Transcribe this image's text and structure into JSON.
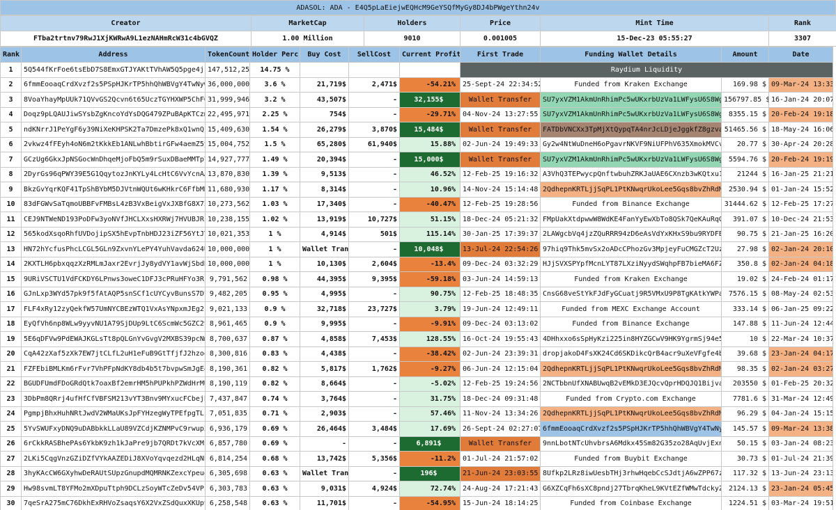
{
  "title": "ADASOL: ADA - E4Q5pLaEiejwEQHcM9GeYSQfMyGy8DJ4bPWgeYthn24v",
  "summary": {
    "headers": [
      "Creator",
      "MarketCap",
      "Holders",
      "Price",
      "Mint Time",
      "Rank"
    ],
    "values": [
      "FTba2trtnv79RwJ1XjKWRwA9L1ezNAHmRcW31c4bGVQZ",
      "1.00 Million",
      "9010",
      "0.001005",
      "15-Dec-23 05:55:27",
      "3307"
    ]
  },
  "table": {
    "headers": [
      "Rank",
      "Address",
      "TokenCount",
      "Holder Perc",
      "Buy Cost",
      "SellCost",
      "Current Profit",
      "First Trade",
      "Funding Wallet Details",
      "Amount",
      "Date"
    ],
    "rows": [
      {
        "cells": [
          "1",
          "5Q544fKrFoe6tsEbD7S8EmxGTJYAKtTVhAW5Q5pge4j1",
          "147,512,256",
          "14.75 %",
          null,
          null,
          null,
          "Raydium Liquidity"
        ],
        "fills": {
          "7": "#5b6262"
        }
      },
      {
        "cells": [
          "2",
          "6fmmEooaqCrdXvzf2s5PSpHJKrTP5hhQhWBVgY4TwNyw",
          "36,000,000",
          "3.6 %",
          "21,719$",
          "2,471$",
          "-54.21%",
          "25-Sept-24 22:34:52",
          "Funded from Kraken Exchange",
          "169.98 $",
          "09-Mar-24 13:33"
        ],
        "fills": {
          "6": "#e8823c",
          "10": "#f4b183"
        }
      },
      {
        "cells": [
          "3",
          "8VoaYhayMpUUk71QVvGS2Qcvn6t65UczTGYHXWP5ChFQ",
          "31,999,946",
          "3.2 %",
          "43,507$",
          "-",
          "32,155$",
          "Wallet Transfer",
          "SU7yxVZM1AkmUnRhimPc5wUKxrbUzVa1LWFysU6S8Wg",
          "156797.85 $",
          "16-Jan-24 20:07"
        ],
        "fills": {
          "6": "#1e6b32",
          "7": "#e07b39",
          "8": "#92d6b4"
        }
      },
      {
        "cells": [
          "4",
          "Doqz9pLQAUJiwSYsbZgKncoYdYsDQG479ZPuBApKTCzm",
          "22,495,971",
          "2.25 %",
          "754$",
          "-",
          "-29.71%",
          "04-Nov-24 13:27:55",
          "SU7yxVZM1AkmUnRhimPc5wUKxrbUzVa1LWFysU6S8Wg",
          "8355.15 $",
          "20-Feb-24 19:18"
        ],
        "fills": {
          "6": "#e8823c",
          "8": "#92d6b4",
          "10": "#f4b183"
        }
      },
      {
        "cells": [
          "5",
          "ndKNrrJ1PeYgF6y39NiXeKHPSK2Ta7DmzePk8xQ1wnQ",
          "15,409,630",
          "1.54 %",
          "26,279$",
          "3,870$",
          "15,484$",
          "Wallet Transfer",
          "FATDbVNCXx3TpMjXtQypqTA4nrJcLDjeJggkfZ8gzvaZ",
          "51465.56 $",
          "18-May-24 16:06"
        ],
        "fills": {
          "6": "#1e6b32",
          "7": "#e07b39",
          "8": "#a68472"
        }
      },
      {
        "cells": [
          "6",
          "2vkwz4fFEyh4oN6m2tKkkEb1ANLwhBbtirGFw4aemZ5y",
          "15,004,752",
          "1.5 %",
          "65,280$",
          "61,940$",
          "15.88%",
          "02-Jun-24 19:49:33",
          "Gy2w4NtWuDneH6oPgavrNKVF9NiUFPhV635XmokMVCvU",
          "20.77 $",
          "30-Apr-24 20:28"
        ],
        "fills": {
          "6": "#d9f2e0"
        }
      },
      {
        "cells": [
          "7",
          "GCzUg6GkxJpNSGocWnDhqeMjoFbQ5m9rSuxDBaeMMTp7",
          "14,927,777",
          "1.49 %",
          "20,394$",
          "-",
          "15,000$",
          "Wallet Transfer",
          "SU7yxVZM1AkmUnRhimPc5wUKxrbUzVa1LWFysU6S8Wg",
          "5594.76 $",
          "20-Feb-24 19:19"
        ],
        "fills": {
          "6": "#1e6b32",
          "7": "#e07b39",
          "8": "#92d6b4",
          "10": "#f4b183"
        }
      },
      {
        "cells": [
          "8",
          "2DyrGs96qPWY39E5G1QqytozJnKYLy4LcHtC6VvYcnAA",
          "13,870,830",
          "1.39 %",
          "9,513$",
          "-",
          "46.52%",
          "12-Feb-25 19:16:32",
          "A3VhQ3TEPwycpQnftwbuhZRKJaUAE6CXnzb3wKQtxu14",
          "21244 $",
          "16-Jan-25 21:21"
        ],
        "fills": {
          "6": "#d9f2e0"
        }
      },
      {
        "cells": [
          "9",
          "BkzGvYqrKQF41TpShBYbM5DJVtnWQUt6wKHkrC6FfbMH",
          "11,680,930",
          "1.17 %",
          "8,314$",
          "-",
          "10.96%",
          "14-Nov-24 15:14:48",
          "2QdhepnKRTLjjSqPL1PtKNwqrUkoLee5Gqs8bvZhRdMv",
          "2530.94 $",
          "01-Jan-24 15:52"
        ],
        "fills": {
          "6": "#d9f2e0",
          "8": "#f4b183"
        }
      },
      {
        "cells": [
          "10",
          "83dFGWvSaTqmoUBBFvFMBsL4zB3VxBeigVxJXBfG8X72",
          "10,273,562",
          "1.03 %",
          "17,340$",
          "-",
          "-40.47%",
          "12-Feb-25 19:28:56",
          "Funded from Binance Exchange",
          "31444.62 $",
          "12-Feb-25 17:27"
        ],
        "fills": {
          "6": "#e8823c"
        }
      },
      {
        "cells": [
          "11",
          "CEJ9NTWeND193PoDFw3yoNVfJHCLXxsHXRWj7HVUBJRi",
          "10,238,155",
          "1.02 %",
          "13,919$",
          "10,727$",
          "51.15%",
          "18-Dec-24 05:21:32",
          "FMpUakXtdpwwW8WdKE4FanYyEwXbTo8QSk7QeKAuRqG1",
          "391.07 $",
          "10-Dec-24 21:53"
        ],
        "fills": {
          "6": "#d9f2e0"
        }
      },
      {
        "cells": [
          "12",
          "565kodXsqoRhfUVDojipSX5hEvpTnbHDJ23iZF56YtJY",
          "10,021,353",
          "1 %",
          "4,914$",
          "501$",
          "115.14%",
          "30-Jan-25 17:39:37",
          "2LAWgcbVq4jzZQuRRR94zD6eAsVdYxKHxS9bu9RYDFBh",
          "90.75 $",
          "21-Jan-25 16:20"
        ],
        "fills": {
          "6": "#d9f2e0"
        }
      },
      {
        "cells": [
          "13",
          "HN72hYcfusPhcLCGL5GLn9ZxvnYLePY4YuhVavda624U",
          "10,000,000",
          "1 %",
          "Wallet Transfer",
          "-",
          "10,048$",
          "13-Jul-24 22:54:26",
          "97hiq9Thk5mvSx2oADcCPhozGv3MpjeyFuCMGZcT2Uzh",
          "27.98 $",
          "02-Jan-24 20:10"
        ],
        "fills": {
          "6": "#1e6b32",
          "7": "#e07b39",
          "10": "#f4b183"
        }
      },
      {
        "cells": [
          "14",
          "2KXTLH6pbxqqzXzRMLmJaxr2EvrjJy8ydVY1avWjSbdB",
          "10,000,000",
          "1 %",
          "10,130$",
          "2,604$",
          "-13.4%",
          "09-Dec-24 03:32:29",
          "HJjSVXSPYpfMcnLYT87LXziNyydSWqhpFB7bieMA6FZS",
          "350.8 $",
          "02-Jan-24 04:18"
        ],
        "fills": {
          "6": "#e8823c",
          "10": "#f4b183"
        }
      },
      {
        "cells": [
          "15",
          "9URiVSCTU1VdFCKDY6LPnws3oweC1DFJ3cPRuHFYo3Rj",
          "9,791,562",
          "0.98 %",
          "44,395$",
          "9,395$",
          "-59.18%",
          "03-Jun-24 14:59:13",
          "Funded from Kraken Exchange",
          "19.02 $",
          "24-Feb-24 01:17"
        ],
        "fills": {
          "6": "#e8823c"
        }
      },
      {
        "cells": [
          "16",
          "GJnLxp3WYd57pk9f5fAtAQP5snSCf1cUYCyvBunsS7Dt",
          "9,482,205",
          "0.95 %",
          "4,995$",
          "-",
          "90.75%",
          "12-Feb-25 18:48:35",
          "CnsG68veStYkFJdFyGCuatj9R5VMxU9P8TgKAtkYWPaa",
          "7576.15 $",
          "08-May-24 02:53"
        ],
        "fills": {
          "6": "#d9f2e0"
        }
      },
      {
        "cells": [
          "17",
          "FLF4xRy12zyQekfW57UmNYCBEzWTQ1VxAsYNpxmJEg2k",
          "9,021,133",
          "0.9 %",
          "32,718$",
          "23,727$",
          "3.79%",
          "19-Jun-24 12:49:11",
          "Funded from MEXC Exchange Account",
          "333.14 $",
          "06-Jan-25 09:22"
        ],
        "fills": {
          "6": "#d9f2e0"
        }
      },
      {
        "cells": [
          "18",
          "EyQfVh6np8WLw9yyvNU1A79SjDUp9LtC6ScmWc5GZC2v",
          "8,961,465",
          "0.9 %",
          "9,995$",
          "-",
          "-9.91%",
          "09-Dec-24 03:13:02",
          "Funded from Binance Exchange",
          "147.88 $",
          "11-Jun-24 12:44"
        ],
        "fills": {
          "6": "#e8823c"
        }
      },
      {
        "cells": [
          "19",
          "5E6qDFVw9PdEWAJKGLsTt8pQLGnYvGvgV2MXBS39pcNm",
          "8,700,637",
          "0.87 %",
          "4,858$",
          "7,453$",
          "128.55%",
          "16-Oct-24 19:55:43",
          "4DHhxxo6sSpHyKzi225in8HYZGCwV9HK9YgrmSj94e5W",
          "10 $",
          "22-Mar-24 10:37"
        ],
        "fills": {
          "6": "#d9f2e0"
        }
      },
      {
        "cells": [
          "20",
          "CqA42zXaf5zXk7EW7jtCLfL2uH1eFuB9GtTfjfJ2hzoq",
          "8,300,816",
          "0.83 %",
          "4,438$",
          "-",
          "-38.42%",
          "02-Jun-24 23:39:31",
          "dropjakoD4FsXK24Cd6SKDikcQrB4acr9uXeVFgfe4b",
          "39.68 $",
          "23-Jan-24 04:17"
        ],
        "fills": {
          "6": "#e8823c",
          "10": "#f4b183"
        }
      },
      {
        "cells": [
          "21",
          "FZFEbiBMLKm6rFvr7VhPFpNdKY8db4b5t7bvpwSmJgE4",
          "8,190,361",
          "0.82 %",
          "5,817$",
          "1,762$",
          "-9.27%",
          "06-Jun-24 12:15:04",
          "2QdhepnKRTLjjSqPL1PtKNwqrUkoLee5Gqs8bvZhRdMv",
          "98.35 $",
          "02-Jan-24 03:27"
        ],
        "fills": {
          "6": "#e8823c",
          "8": "#f4b183",
          "10": "#f4b183"
        }
      },
      {
        "cells": [
          "22",
          "BGUDFUmdFDoGRdQtk7oaxBf2emrHM5hPUPkhPZWdHrMU",
          "8,190,119",
          "0.82 %",
          "8,664$",
          "-",
          "-5.02%",
          "12-Feb-25 19:24:56",
          "2NCTbbnUfXNABUwqB2vEMkD3EJQcvQprHDQJQ1Bijvaz",
          "203550 $",
          "01-Feb-25 20:32"
        ],
        "fills": {
          "6": "#d9f2e0"
        }
      },
      {
        "cells": [
          "23",
          "3DbPm8QRrj4ufHfCfVBFSM213vYT3Bnv9MYxucFCbejh",
          "7,437,847",
          "0.74 %",
          "3,764$",
          "-",
          "31.75%",
          "18-Dec-24 09:31:48",
          "Funded from Crypto.com Exchange",
          "7781.6 $",
          "31-Mar-24 12:49"
        ],
        "fills": {
          "6": "#d9f2e0"
        }
      },
      {
        "cells": [
          "24",
          "PgmpjBhxHuhNRtJwdV2WMaUKsJpFYHzegWyTPEfpgTL",
          "7,051,835",
          "0.71 %",
          "2,903$",
          "-",
          "57.46%",
          "11-Nov-24 13:34:26",
          "2QdhepnKRTLjjSqPL1PtKNwqrUkoLee5Gqs8bvZhRdMv",
          "96.29 $",
          "04-Jan-24 15:15"
        ],
        "fills": {
          "6": "#d9f2e0",
          "8": "#f4b183"
        }
      },
      {
        "cells": [
          "25",
          "5YvSWUFxyDNQ9uDABbkkLLaU89VZCdjKZNMPvC9rwup2",
          "6,936,179",
          "0.69 %",
          "26,464$",
          "3,484$",
          "17.69%",
          "26-Sept-24 02:27:07",
          "6fmmEooaqCrdXvzf2s5PSpHJKrTP5hhQhWBVgY4TwNyw",
          "145.57 $",
          "09-Mar-24 13:38"
        ],
        "fills": {
          "6": "#d9f2e0",
          "8": "#9dc3e6",
          "10": "#f4b183"
        }
      },
      {
        "cells": [
          "26",
          "6rCkkRASBhePAs6YkbK9zh1kJaPre9jb7QRDt7kVcXMz",
          "6,857,780",
          "0.69 %",
          "-",
          "-",
          "6,891$",
          "Wallet Transfer",
          "9nnLbotNTcUhvbrsA6Mdkx45Sm82G35zo28AqUvjExn8",
          "50.15 $",
          "03-Jan-24 08:23"
        ],
        "fills": {
          "6": "#1e6b32",
          "7": "#e07b39"
        }
      },
      {
        "cells": [
          "27",
          "2LKi5CqgVnzGZiDZfVYkAAZEDiJ8XVoYqvqezd2HLqNh",
          "6,814,254",
          "0.68 %",
          "13,742$",
          "5,356$",
          "-11.2%",
          "01-Jul-24 21:57:02",
          "Funded from Buybit Exchange",
          "30.73 $",
          "01-Jul-24 21:39"
        ],
        "fills": {
          "6": "#e8823c"
        }
      },
      {
        "cells": [
          "28",
          "3hyKAcCW6GXyhwDeRAUtSUpzGnupdMQMRNKZexcYpeuo",
          "6,305,698",
          "0.63 %",
          "Wallet Transfer",
          "-",
          "196$",
          "21-Jun-24 23:03:55",
          "8Ufkp2LRz8iwUesbTHj3rhwHqebCcSJdtjA6wZPP67zV",
          "117.32 $",
          "13-Jun-24 23:13"
        ],
        "fills": {
          "6": "#1e6b32",
          "7": "#e07b39"
        }
      },
      {
        "cells": [
          "29",
          "Hw98svmLT8YFMo2mXDpuTtph9DCLzSoyWTcZeDv54VPi",
          "6,303,783",
          "0.63 %",
          "9,031$",
          "4,924$",
          "72.74%",
          "24-Aug-24 17:21:43",
          "G6XZCqFh6sXC8pndj27TbrqKheL9KVtEZfWMwTdckyZR",
          "2124.13 $",
          "23-Jan-24 05:45"
        ],
        "fills": {
          "6": "#d9f2e0",
          "10": "#f4b183"
        }
      },
      {
        "cells": [
          "30",
          "7qeSrA275mC76DkhExRHVoZsaqsY6X2VxZSdQuxXKUpv",
          "6,258,548",
          "0.63 %",
          "11,701$",
          "-",
          "-54.95%",
          "15-Jun-24 18:14:25",
          "Funded from Coinbase Exchange",
          "1224.51 $",
          "03-Mar-24 19:51"
        ],
        "fills": {
          "6": "#e8823c"
        }
      }
    ]
  }
}
